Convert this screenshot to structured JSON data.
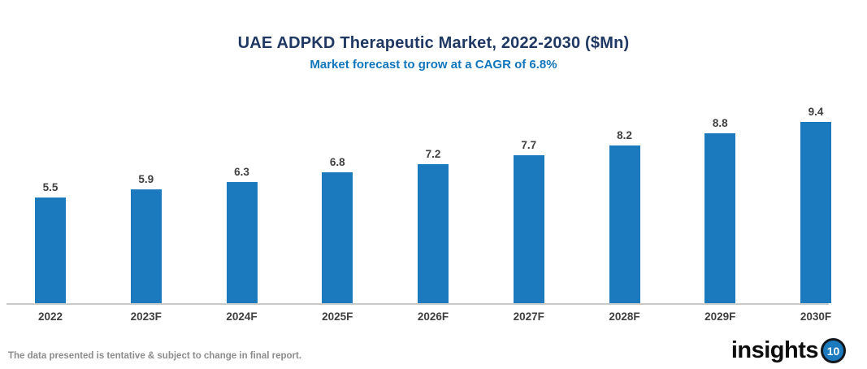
{
  "header": {
    "title": "UAE ADPKD Therapeutic Market, 2022-2030 ($Mn)",
    "subtitle": "Market forecast to grow at a CAGR of 6.8%"
  },
  "chart_data": {
    "type": "bar",
    "categories": [
      "2022",
      "2023F",
      "2024F",
      "2025F",
      "2026F",
      "2027F",
      "2028F",
      "2029F",
      "2030F"
    ],
    "values": [
      5.5,
      5.9,
      6.3,
      6.8,
      7.2,
      7.7,
      8.2,
      8.8,
      9.4
    ],
    "title": "UAE ADPKD Therapeutic Market, 2022-2030 ($Mn)",
    "subtitle": "Market forecast to grow at a CAGR of 6.8%",
    "xlabel": "",
    "ylabel": "",
    "ylim": [
      0,
      10
    ],
    "grid": false,
    "legend": false,
    "value_labels_shown": true,
    "bar_color": "#1B79BE",
    "label_color": "#404040",
    "axis_color": "#C9C9C9"
  },
  "footer": {
    "disclaimer": "The data presented is tentative & subject to change in final report.",
    "logo_text": "insights",
    "logo_badge": "10"
  },
  "colors": {
    "title": "#1F3864",
    "subtitle": "#1176BC",
    "bar": "#1B79BE",
    "badge_bg": "#1B79BE",
    "footer_text": "#8C8C8C"
  }
}
